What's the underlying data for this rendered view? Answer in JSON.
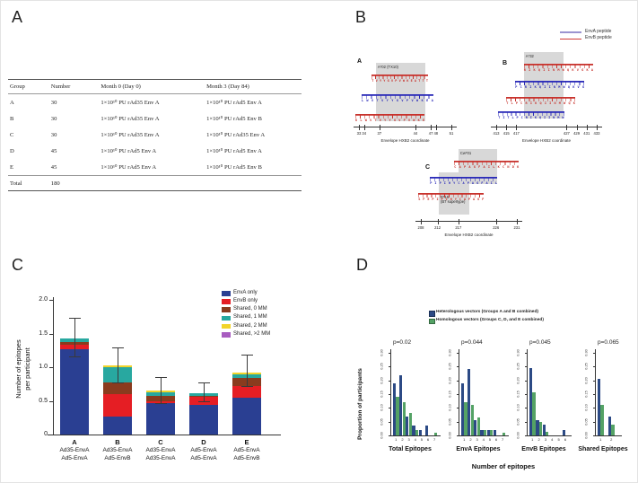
{
  "panel_a": {
    "label": "A",
    "table": {
      "headers": [
        "Group",
        "Number",
        "Month 0 (Day 0)",
        "Month 3 (Day 84)"
      ],
      "rows": [
        [
          "A",
          "30",
          "1×10¹⁰ PU rAd35 Env A",
          "1×10¹⁰ PU rAd5 Env A"
        ],
        [
          "B",
          "30",
          "1×10¹⁰ PU rAd35 Env A",
          "1×10¹⁰ PU rAd5 Env B"
        ],
        [
          "C",
          "30",
          "1×10¹⁰ PU rAd35 Env A",
          "1×10¹⁰ PU rAd35 Env A"
        ],
        [
          "D",
          "45",
          "1×10¹⁰ PU rAd5 Env A",
          "1×10¹⁰ PU rAd5 Env A"
        ],
        [
          "E",
          "45",
          "1×10¹⁰ PU rAd5 Env A",
          "1×10¹⁰ PU rAd5 Env B"
        ]
      ],
      "total_row": [
        "Total",
        "180",
        "",
        ""
      ]
    }
  },
  "panel_b": {
    "label": "B",
    "legend": [
      {
        "label": "EnvA peptide",
        "color": "#9b94d0"
      },
      {
        "label": "EnvB peptide",
        "color": "#cf3a35"
      }
    ],
    "subpanels": [
      {
        "id": "A",
        "sub_label": "A",
        "axis_label": "Envelope HXB2 coordinate",
        "ticks": [
          33,
          34,
          37,
          44,
          47,
          48,
          51
        ],
        "boxes": [
          {
            "label_lines": [
              "A*02 (TX10)"
            ],
            "from": 36.3,
            "to": 46,
            "row_from": 0,
            "row_to": 2,
            "label_pos": "top"
          }
        ],
        "rows": [
          {
            "type": "EnvB",
            "from": 35.5,
            "to": 46.5,
            "seq": "TVYYGVPVWKEATTT"
          },
          {
            "type": "EnvA",
            "from": 33.5,
            "to": 47.5,
            "seq": "LWVTVYYGVPVWKEA"
          },
          {
            "type": "EnvB",
            "from": 32.3,
            "to": 45.8,
            "seq": "KLWVTVYYGVPVWKE"
          }
        ]
      },
      {
        "id": "B",
        "sub_label": "B",
        "axis_label": "Envelope HXB2 coordinate",
        "ticks": [
          413,
          415,
          417,
          427,
          429,
          431,
          433
        ],
        "boxes": [
          {
            "label_lines": [
              "A*32"
            ],
            "from": 418.5,
            "to": 426.4,
            "row_from": 0,
            "row_to": 3,
            "label_pos": "top"
          }
        ],
        "rows": [
          {
            "type": "EnvB",
            "from": 418.5,
            "to": 432.3,
            "seq": "RIKQIINMWQKVGKA"
          },
          {
            "type": "EnvA",
            "from": 416.8,
            "to": 430.5,
            "seq": "PCRIKQIINMWQKVG"
          },
          {
            "type": "EnvB",
            "from": 415.0,
            "to": 428.7,
            "seq": "TLPCRIKQIINMWQK"
          },
          {
            "type": "EnvA",
            "from": 413.4,
            "to": 426.5,
            "seq": "TITLPCRIKQIINMW"
          }
        ]
      },
      {
        "id": "C",
        "sub_label": "C",
        "axis_label": "Envelope HXB2 coordinate",
        "ticks": [
          208,
          212,
          217,
          226,
          231
        ],
        "boxes": [
          {
            "label_lines": [
              "Cw*01"
            ],
            "from": 217,
            "to": 226.3,
            "row_from": 0,
            "row_to": 1,
            "label_pos": "top"
          },
          {
            "label_lines": [
              "B*15",
              "(B7 supertype)"
            ],
            "from": 212.3,
            "to": 219.6,
            "row_from": 1,
            "row_to": 2,
            "label_pos": "bottom"
          }
        ],
        "rows": [
          {
            "type": "EnvB",
            "from": 216.0,
            "to": 231.5,
            "seq": "CAPAGFAILKCNDK"
          },
          {
            "type": "EnvA",
            "from": 210.2,
            "to": 226.3,
            "seq": "PIPIHYCAPAGFAIL"
          },
          {
            "type": "EnvB",
            "from": 207.4,
            "to": 223.1,
            "seq": "SFEPIPIHYCAPAGF"
          }
        ]
      }
    ]
  },
  "panel_c": {
    "label": "C"
  },
  "panel_d": {
    "label": "D",
    "ylabel": "Proportion of participants",
    "xlabel": "Number of epitopes",
    "legend": [
      {
        "label": "Heterologous vectors (Groups A and B combined)",
        "color": "#2c4a85"
      },
      {
        "label": "Homologous vectors (Groups C, D, and E combined)",
        "color": "#54a265"
      }
    ]
  },
  "chart_data": [
    {
      "id": "panel_c_stacked",
      "type": "bar",
      "stacked": true,
      "ylabel_lines": [
        "Number of epitopes",
        "per participant"
      ],
      "ylim": [
        0,
        2.0
      ],
      "ytick_values": [
        0,
        0.5,
        1.0,
        1.5,
        2.0
      ],
      "yticks": [
        "0",
        "0.5",
        "1.0",
        "1.5",
        "2.0"
      ],
      "categories": [
        "A",
        "B",
        "C",
        "D",
        "E"
      ],
      "category_sublabels": [
        [
          "Ad35-EnvA",
          "Ad5-EnvA"
        ],
        [
          "Ad35-EnvA",
          "Ad5-EnvB"
        ],
        [
          "Ad35-EnvA",
          "Ad35-EnvA"
        ],
        [
          "Ad5-EnvA",
          "Ad5-EnvA"
        ],
        [
          "Ad5-EnvA",
          "Ad5-EnvB"
        ]
      ],
      "series": [
        {
          "name": "EnvA only",
          "color": "#2a3f92",
          "values": [
            1.27,
            0.27,
            0.47,
            0.44,
            0.55
          ]
        },
        {
          "name": "EnvB only",
          "color": "#e51e24",
          "values": [
            0.07,
            0.33,
            0.02,
            0.12,
            0.17
          ]
        },
        {
          "name": "Shared, 0 MM",
          "color": "#8a3b1e",
          "values": [
            0.03,
            0.17,
            0.09,
            0.015,
            0.12
          ]
        },
        {
          "name": "Shared, 1 MM",
          "color": "#28a8a0",
          "values": [
            0.06,
            0.23,
            0.05,
            0.045,
            0.06
          ]
        },
        {
          "name": "Shared, 2 MM",
          "color": "#f2d42a",
          "values": [
            0,
            0.03,
            0.02,
            0,
            0.02
          ]
        },
        {
          "name": "Shared, >2 MM",
          "color": "#a85cc0",
          "values": [
            0,
            0,
            0,
            0,
            0
          ]
        }
      ],
      "error_bars": [
        [
          1.15,
          1.73
        ],
        [
          0.76,
          1.29
        ],
        [
          0.45,
          0.85
        ],
        [
          0.48,
          0.78
        ],
        [
          0.71,
          1.19
        ]
      ],
      "legend_position": "top-right"
    },
    {
      "id": "panel_d_total",
      "type": "bar",
      "title": "Total Epitopes",
      "p_label": "p=0.02",
      "ylabel": "Proportion of participants",
      "xlabel": "Number of epitopes",
      "x": [
        1,
        2,
        3,
        4,
        5,
        6,
        7
      ],
      "ylim": [
        0,
        0.3
      ],
      "yticks": [
        "0.00",
        "0.05",
        "0.10",
        "0.15",
        "0.20",
        "0.25",
        "0.30"
      ],
      "series": [
        {
          "name": "Heterologous vectors (Groups A and B combined)",
          "color": "#2c4a85",
          "values": [
            0.19,
            0.22,
            0.07,
            0.035,
            0.02,
            0.035,
            0
          ]
        },
        {
          "name": "Homologous vectors (Groups C, D, and E combined)",
          "color": "#54a265",
          "values": [
            0.14,
            0.12,
            0.08,
            0.02,
            0,
            0,
            0.01
          ]
        }
      ]
    },
    {
      "id": "panel_d_enva",
      "type": "bar",
      "title": "EnvA Epitopes",
      "p_label": "p=0.044",
      "ylabel": "Proportion of participants",
      "xlabel": "Number of epitopes",
      "x": [
        1,
        2,
        3,
        4,
        5,
        6,
        7
      ],
      "ylim": [
        0,
        0.3
      ],
      "yticks": [
        "0.00",
        "0.05",
        "0.10",
        "0.15",
        "0.20",
        "0.25",
        "0.30"
      ],
      "series": [
        {
          "name": "Heterologous vectors (Groups A and B combined)",
          "color": "#2c4a85",
          "values": [
            0.19,
            0.24,
            0.055,
            0.02,
            0.02,
            0.02,
            0
          ]
        },
        {
          "name": "Homologous vectors (Groups C, D, and E combined)",
          "color": "#54a265",
          "values": [
            0.12,
            0.11,
            0.065,
            0.02,
            0.02,
            0,
            0.01
          ]
        }
      ]
    },
    {
      "id": "panel_d_envb",
      "type": "bar",
      "title": "EnvB Epitopes",
      "p_label": "p=0.045",
      "ylabel": "Proportion of participants",
      "xlabel": "Number of epitopes",
      "x": [
        1,
        2,
        3,
        4,
        5,
        6
      ],
      "ylim": [
        0,
        0.3
      ],
      "yticks": [
        "0.00",
        "0.05",
        "0.10",
        "0.15",
        "0.20",
        "0.25",
        "0.30"
      ],
      "series": [
        {
          "name": "Heterologous vectors (Groups A and B combined)",
          "color": "#2c4a85",
          "values": [
            0.245,
            0.055,
            0.04,
            0,
            0,
            0.02
          ]
        },
        {
          "name": "Homologous vectors (Groups C, D, and E combined)",
          "color": "#54a265",
          "values": [
            0.155,
            0.05,
            0.012,
            0,
            0,
            0
          ]
        }
      ]
    },
    {
      "id": "panel_d_shared",
      "type": "bar",
      "title": "Shared Epitopes",
      "p_label": "p=0.065",
      "ylabel": "Proportion of participants",
      "xlabel": "Number of epitopes",
      "x": [
        1,
        2
      ],
      "ylim": [
        0,
        0.3
      ],
      "yticks": [
        "0.00",
        "0.05",
        "0.10",
        "0.15",
        "0.20",
        "0.25",
        "0.30"
      ],
      "series": [
        {
          "name": "Heterologous vectors (Groups A and B combined)",
          "color": "#2c4a85",
          "values": [
            0.205,
            0.07
          ]
        },
        {
          "name": "Homologous vectors (Groups C, D, and E combined)",
          "color": "#54a265",
          "values": [
            0.11,
            0.04
          ]
        }
      ]
    }
  ]
}
